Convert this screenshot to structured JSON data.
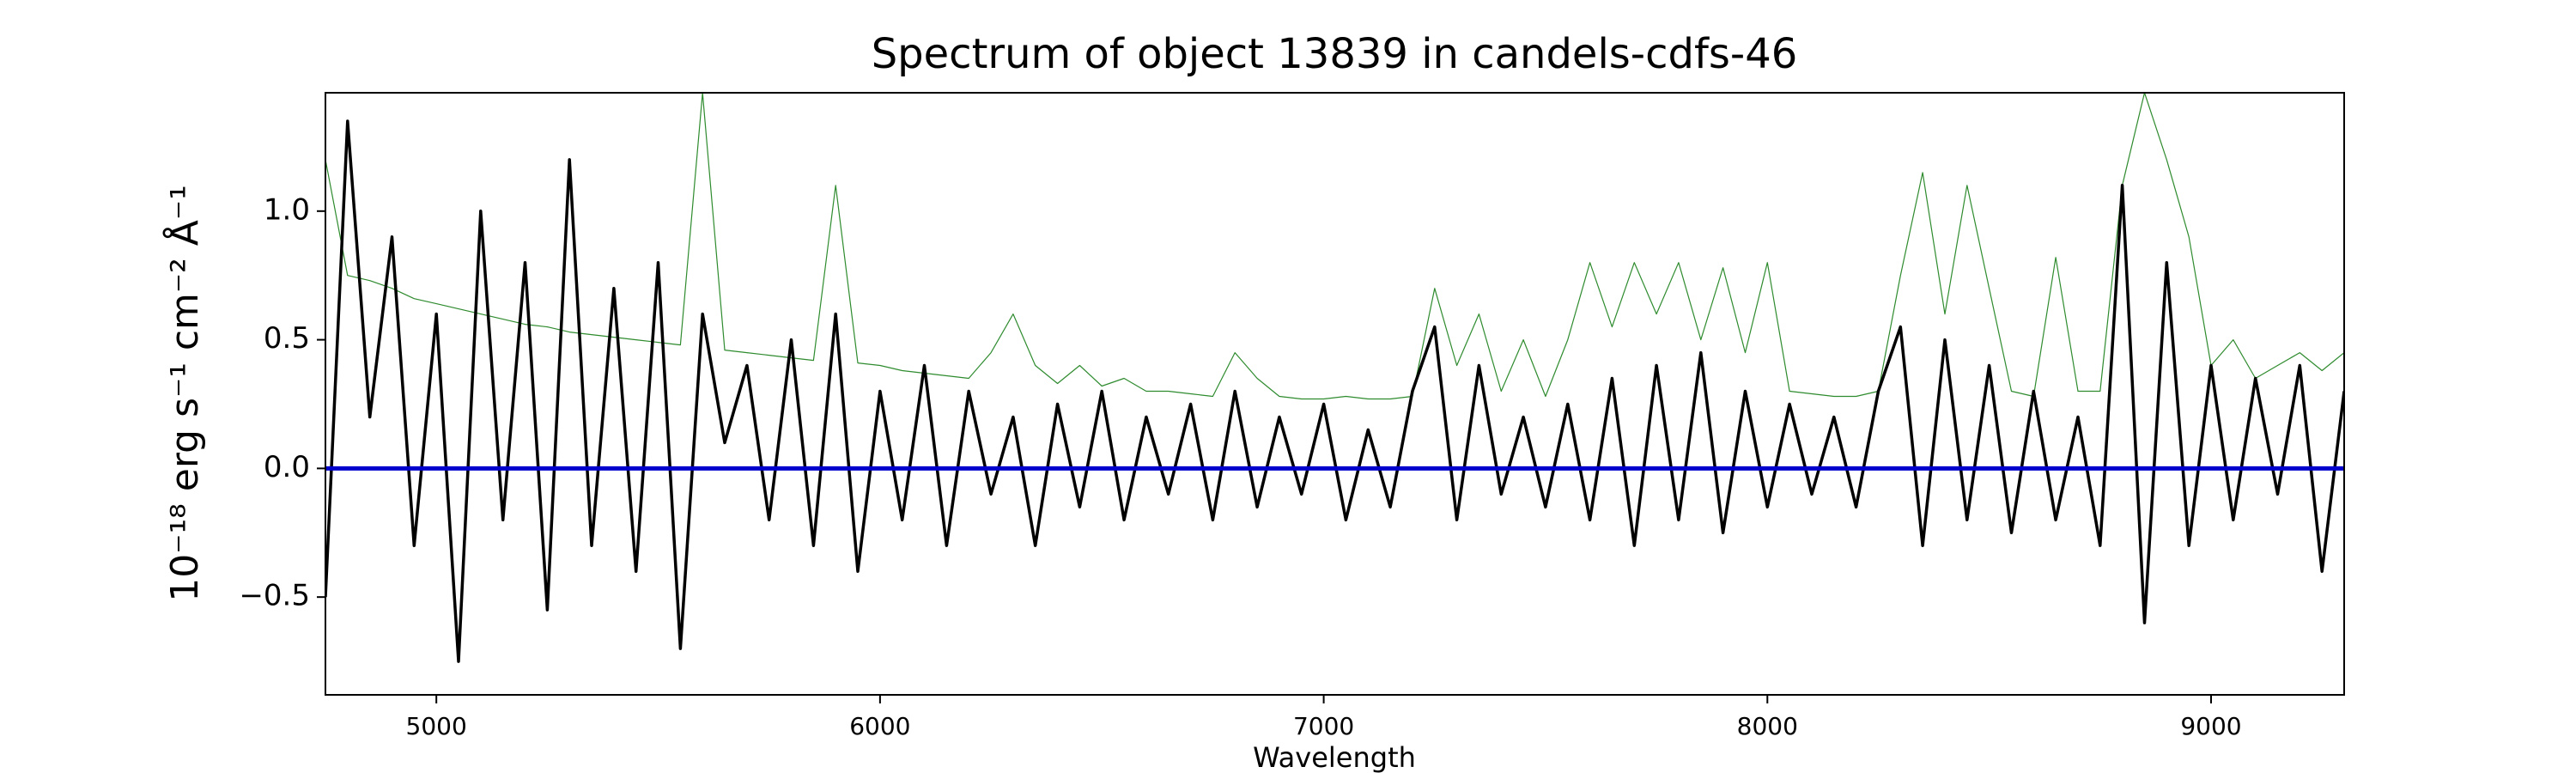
{
  "chart_data": {
    "type": "line",
    "title": "Spectrum of object 13839 in candels-cdfs-46",
    "xlabel": "Wavelength",
    "ylabel": "10⁻¹⁸ erg s⁻¹ cm⁻² Å⁻¹",
    "x": [
      4750,
      4800,
      4850,
      4900,
      4950,
      5000,
      5050,
      5100,
      5150,
      5200,
      5250,
      5300,
      5350,
      5400,
      5450,
      5500,
      5550,
      5600,
      5650,
      5700,
      5750,
      5800,
      5850,
      5900,
      5950,
      6000,
      6050,
      6100,
      6150,
      6200,
      6250,
      6300,
      6350,
      6400,
      6450,
      6500,
      6550,
      6600,
      6650,
      6700,
      6750,
      6800,
      6850,
      6900,
      6950,
      7000,
      7050,
      7100,
      7150,
      7200,
      7250,
      7300,
      7350,
      7400,
      7450,
      7500,
      7550,
      7600,
      7650,
      7700,
      7750,
      7800,
      7850,
      7900,
      7950,
      8000,
      8050,
      8100,
      8150,
      8200,
      8250,
      8300,
      8350,
      8400,
      8450,
      8500,
      8550,
      8600,
      8650,
      8700,
      8750,
      8800,
      8850,
      8900,
      8950,
      9000,
      9050,
      9100,
      9150,
      9200,
      9250,
      9300
    ],
    "series": [
      {
        "color": "#2e8b2e",
        "width": 1.2,
        "values": [
          1.2,
          0.75,
          0.73,
          0.7,
          0.66,
          0.64,
          0.62,
          0.6,
          0.58,
          0.56,
          0.55,
          0.53,
          0.52,
          0.51,
          0.5,
          0.49,
          0.48,
          1.46,
          0.46,
          0.45,
          0.44,
          0.43,
          0.42,
          1.1,
          0.41,
          0.4,
          0.38,
          0.37,
          0.36,
          0.35,
          0.45,
          0.6,
          0.4,
          0.33,
          0.4,
          0.32,
          0.35,
          0.3,
          0.3,
          0.29,
          0.28,
          0.45,
          0.35,
          0.28,
          0.27,
          0.27,
          0.28,
          0.27,
          0.27,
          0.28,
          0.7,
          0.4,
          0.6,
          0.3,
          0.5,
          0.28,
          0.5,
          0.8,
          0.55,
          0.8,
          0.6,
          0.8,
          0.5,
          0.78,
          0.45,
          0.8,
          0.3,
          0.29,
          0.28,
          0.28,
          0.3,
          0.75,
          1.15,
          0.6,
          1.1,
          0.7,
          0.3,
          0.28,
          0.82,
          0.3,
          0.3,
          1.1,
          1.46,
          1.2,
          0.9,
          0.4,
          0.5,
          0.35,
          0.4,
          0.45,
          0.38,
          0.45
        ]
      },
      {
        "color": "#000000",
        "width": 3.5,
        "values": [
          -0.5,
          1.35,
          0.2,
          0.9,
          -0.3,
          0.6,
          -0.75,
          1.0,
          -0.2,
          0.8,
          -0.55,
          1.2,
          -0.3,
          0.7,
          -0.4,
          0.8,
          -0.7,
          0.6,
          0.1,
          0.4,
          -0.2,
          0.5,
          -0.3,
          0.6,
          -0.4,
          0.3,
          -0.2,
          0.4,
          -0.3,
          0.3,
          -0.1,
          0.2,
          -0.3,
          0.25,
          -0.15,
          0.3,
          -0.2,
          0.2,
          -0.1,
          0.25,
          -0.2,
          0.3,
          -0.15,
          0.2,
          -0.1,
          0.25,
          -0.2,
          0.15,
          -0.15,
          0.3,
          0.55,
          -0.2,
          0.4,
          -0.1,
          0.2,
          -0.15,
          0.25,
          -0.2,
          0.35,
          -0.3,
          0.4,
          -0.2,
          0.45,
          -0.25,
          0.3,
          -0.15,
          0.25,
          -0.1,
          0.2,
          -0.15,
          0.3,
          0.55,
          -0.3,
          0.5,
          -0.2,
          0.4,
          -0.25,
          0.3,
          -0.2,
          0.2,
          -0.3,
          1.1,
          -0.6,
          0.8,
          -0.3,
          0.4,
          -0.2,
          0.35,
          -0.1,
          0.4,
          -0.4,
          0.3
        ]
      }
    ],
    "zero_line": {
      "value": 0,
      "color": "#0000cc"
    },
    "xlim": [
      4750,
      9300
    ],
    "ylim": [
      -0.88,
      1.46
    ],
    "xticks": [
      5000,
      6000,
      7000,
      8000,
      9000
    ],
    "yticks": [
      {
        "value": -0.5,
        "label": "−0.5"
      },
      {
        "value": 0,
        "label": "0.0"
      },
      {
        "value": 0.5,
        "label": "0.5"
      },
      {
        "value": 1,
        "label": "1.0"
      }
    ]
  }
}
